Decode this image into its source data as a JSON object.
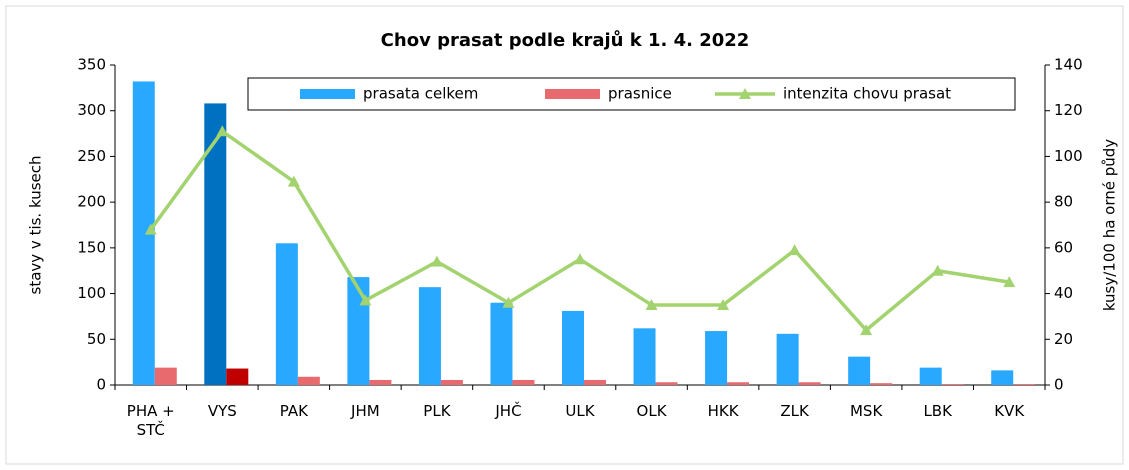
{
  "chart_data": {
    "type": "bar_line",
    "title": "Chov prasat podle krajů k 1. 4. 2022",
    "categories": [
      "PHA + STČ",
      "VYS",
      "PAK",
      "JHM",
      "PLK",
      "JHČ",
      "ULK",
      "OLK",
      "HKK",
      "ZLK",
      "MSK",
      "LBK",
      "KVK"
    ],
    "ylabel": "stavy v tis. kusech",
    "y2label": "kusy/100 ha orné půdy",
    "ylim": [
      0,
      350
    ],
    "yticks": [
      0,
      50,
      100,
      150,
      200,
      250,
      300,
      350
    ],
    "y2lim": [
      0,
      140
    ],
    "y2ticks": [
      0,
      20,
      40,
      60,
      80,
      100,
      120,
      140
    ],
    "legend": "top",
    "series": [
      {
        "name": "prasata celkem",
        "type": "bar",
        "color": "#29a8ff",
        "colors": [
          "#29a8ff",
          "#0070c0",
          "#29a8ff",
          "#29a8ff",
          "#29a8ff",
          "#29a8ff",
          "#29a8ff",
          "#29a8ff",
          "#29a8ff",
          "#29a8ff",
          "#29a8ff",
          "#29a8ff",
          "#29a8ff"
        ],
        "values": [
          332,
          308,
          155,
          118,
          107,
          90,
          81,
          62,
          59,
          56,
          31,
          19,
          16
        ]
      },
      {
        "name": "prasnice",
        "type": "bar",
        "color": "#e8696e",
        "colors": [
          "#e8696e",
          "#c00000",
          "#e8696e",
          "#e8696e",
          "#e8696e",
          "#e8696e",
          "#e8696e",
          "#e8696e",
          "#e8696e",
          "#e8696e",
          "#e8696e",
          "#e8696e",
          "#e8696e"
        ],
        "values": [
          19,
          18,
          9,
          5.5,
          5.5,
          5.5,
          5.5,
          3,
          3,
          3,
          2,
          1,
          1
        ]
      },
      {
        "name": "intenzita chovu prasat",
        "type": "line",
        "axis": "y2",
        "color": "#a3d36f",
        "values": [
          68,
          111,
          89,
          37,
          54,
          36,
          55,
          35,
          35,
          59,
          24,
          50,
          45
        ]
      }
    ]
  }
}
